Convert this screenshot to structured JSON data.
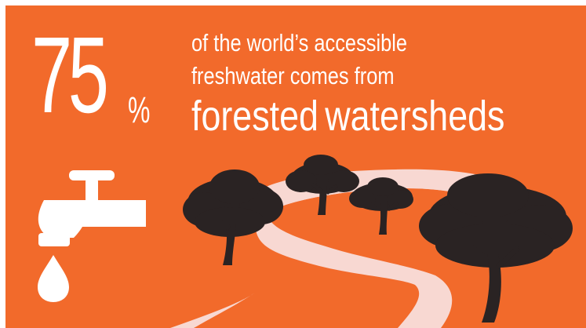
{
  "stat": {
    "number": "75",
    "unit": "%"
  },
  "caption": {
    "line1": "of the world’s accessible",
    "line2": "freshwater comes from",
    "line3_word1": "forested",
    "line3_word2": "watersheds"
  },
  "icons": {
    "faucet": "faucet-icon",
    "water_drop": "water-drop-icon",
    "trees": "tree-icon",
    "river": "river-path"
  },
  "colors": {
    "background": "#f26a2b",
    "text": "#ffffff",
    "river": "#f8d8d2",
    "trees": "#2a2323"
  }
}
